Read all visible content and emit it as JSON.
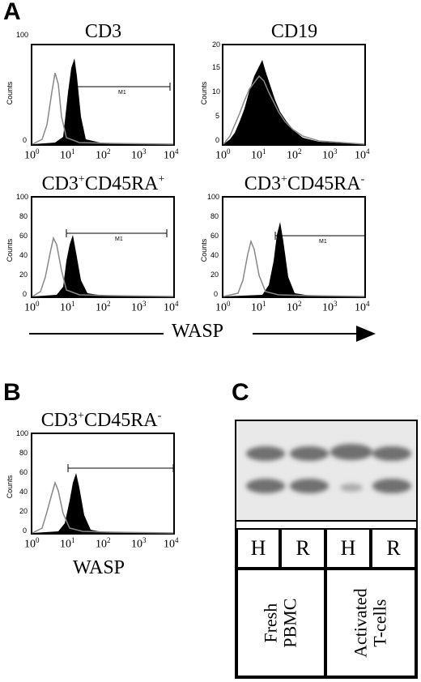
{
  "panels": {
    "a": "A",
    "b": "B",
    "c": "C"
  },
  "histograms": [
    {
      "id": "cd3",
      "title_main": "CD3",
      "title_parts": [],
      "ylabel": "Counts",
      "yticks": [
        "100",
        "0"
      ],
      "marker": "M1"
    },
    {
      "id": "cd19",
      "title_main": "CD19",
      "title_parts": [],
      "ylabel": "Counts",
      "yticks": [
        "20",
        "15",
        "10",
        "5",
        "0"
      ],
      "marker": ""
    },
    {
      "id": "cd3-cd45ra-pos",
      "title_main": "CD3",
      "title_parts": [
        "+",
        "CD45RA",
        "+"
      ],
      "ylabel": "Counts",
      "yticks": [
        "100",
        "80",
        "60",
        "40",
        "20",
        "0"
      ],
      "marker": "M1"
    },
    {
      "id": "cd3-cd45ra-neg",
      "title_main": "CD3",
      "title_parts": [
        "+",
        "CD45RA",
        "-"
      ],
      "ylabel": "Counts",
      "yticks": [
        "100",
        "80",
        "60",
        "40",
        "20",
        "0"
      ],
      "marker": "M1"
    },
    {
      "id": "b-cd3-cd45ra-neg",
      "title_main": "CD3",
      "title_parts": [
        "+",
        "CD45RA",
        "-"
      ],
      "ylabel": "Counts",
      "yticks": [
        "100",
        "80",
        "60",
        "40",
        "20",
        "0"
      ],
      "marker": ""
    }
  ],
  "xticks": {
    "base": "10",
    "exponents": [
      "0",
      "1",
      "2",
      "3",
      "4"
    ]
  },
  "wasp_label": "WASP",
  "blot": {
    "lanes": [
      "H",
      "R",
      "H",
      "R"
    ],
    "groups": [
      "Fresh PBMC",
      "Activated T-cells"
    ],
    "group_lines": [
      [
        "Fresh",
        "PBMC"
      ],
      [
        "Activated",
        "T-cells"
      ]
    ]
  }
}
